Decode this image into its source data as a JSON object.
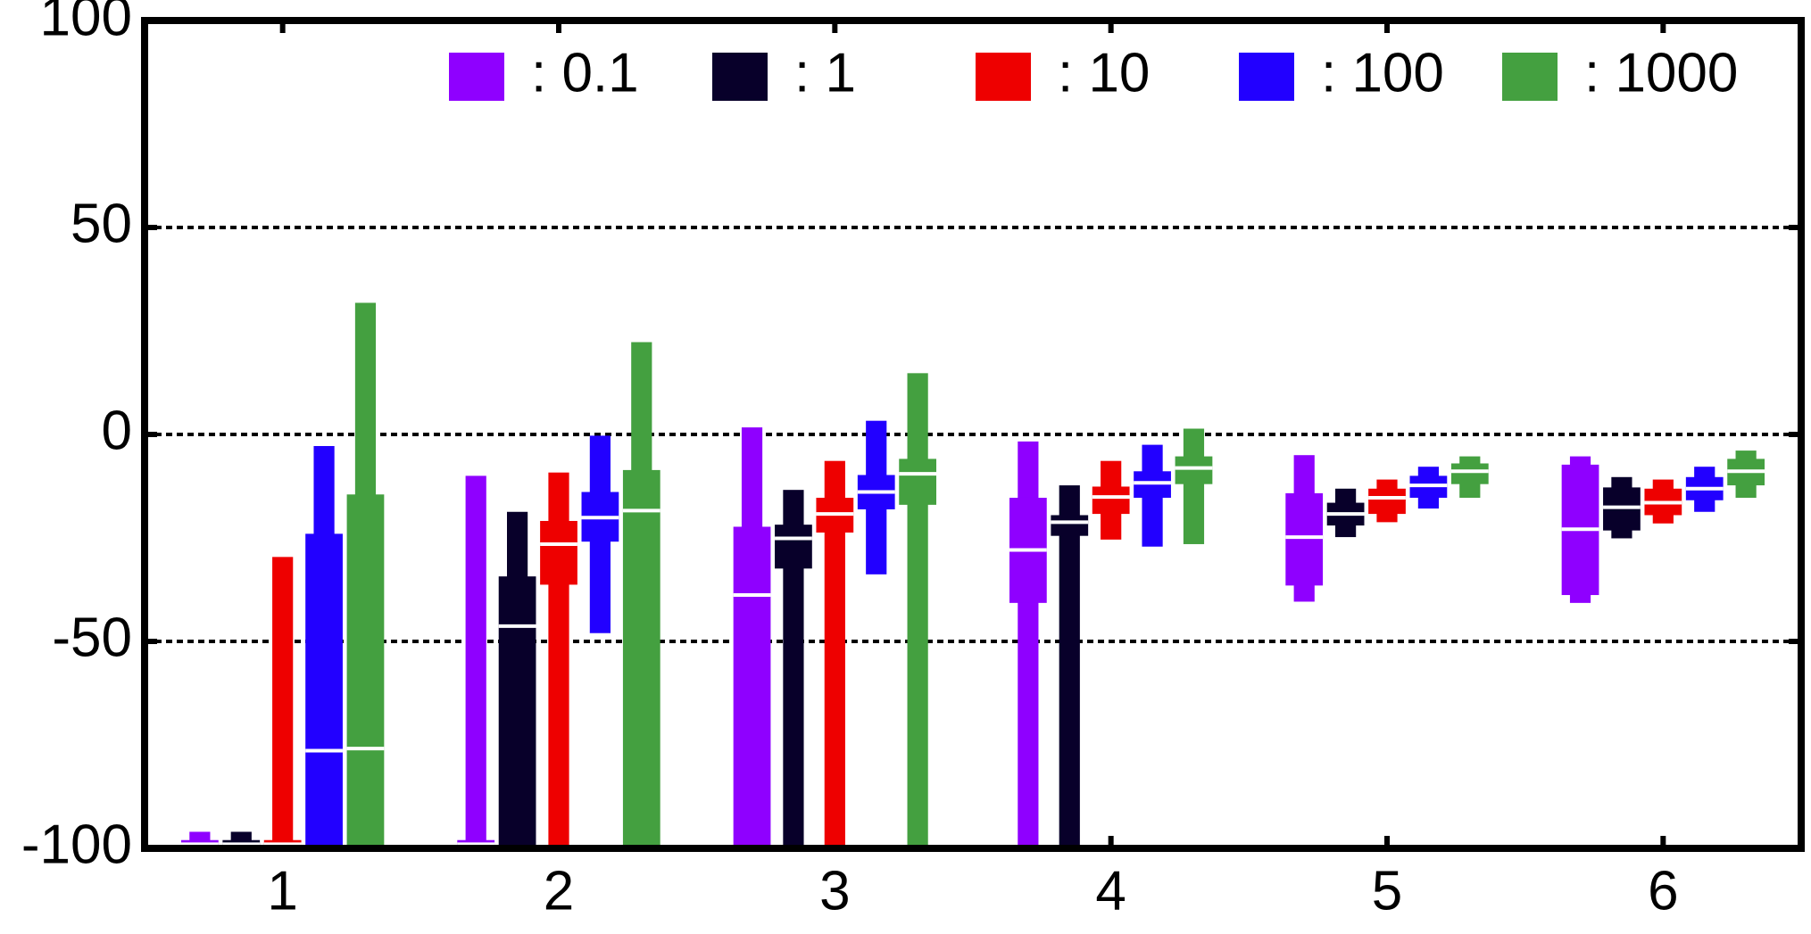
{
  "chart_data": {
    "type": "box",
    "categories": [
      "1",
      "2",
      "3",
      "4",
      "5",
      "6"
    ],
    "series": [
      {
        "name": ": 0.1",
        "color": "#8f00ff",
        "low": [
          -100,
          -100,
          -100,
          -100,
          -40.4,
          -40.7
        ],
        "q1": [
          -100,
          -100,
          -100,
          -40.7,
          -36.5,
          -38.8
        ],
        "median": [
          -99,
          -99,
          -38.8,
          -27.9,
          -24.8,
          -22.9
        ],
        "q3": [
          -98,
          -98,
          -22.3,
          -15.3,
          -14.2,
          -7.3
        ],
        "high": [
          -96,
          -10,
          1.7,
          -1.7,
          -5,
          -5.3
        ]
      },
      {
        "name": ": 1",
        "color": "#08002a",
        "low": [
          -100,
          -100,
          -100,
          -100,
          -24.8,
          -25.1
        ],
        "q1": [
          -100,
          -100,
          -32.4,
          -24.5,
          -22,
          -23.2
        ],
        "median": [
          -99,
          -46.3,
          -25.1,
          -21.2,
          -19.2,
          -17.6
        ],
        "q3": [
          -98,
          -34.3,
          -21.8,
          -19.5,
          -16.5,
          -12.8
        ],
        "high": [
          -96,
          -18.7,
          -13.4,
          -12.3,
          -13.1,
          -10.3
        ]
      },
      {
        "name": ": 10",
        "color": "#ee0000",
        "low": [
          -100,
          -100,
          -100,
          -25.4,
          -21.2,
          -21.5
        ],
        "q1": [
          -100,
          -36.3,
          -23.7,
          -19.2,
          -19.2,
          -19.5
        ],
        "median": [
          -99,
          -26.5,
          -19.2,
          -15.1,
          -15.3,
          -16.5
        ],
        "q3": [
          -98,
          -20.9,
          -15.3,
          -12.6,
          -13.1,
          -13.1
        ],
        "high": [
          -29.6,
          -9.2,
          -6.4,
          -6.4,
          -10.9,
          -10.9
        ]
      },
      {
        "name": ": 100",
        "color": "#2200ff",
        "low": [
          -100,
          -48,
          -33.8,
          -27.1,
          -17.9,
          -18.7
        ],
        "q1": [
          -100,
          -25.9,
          -18.1,
          -15.3,
          -15.3,
          -15.9
        ],
        "median": [
          -76.4,
          -20.1,
          -13.9,
          -11.7,
          -12.3,
          -13.1
        ],
        "q3": [
          -24,
          -13.9,
          -9.8,
          -8.9,
          -10,
          -10.3
        ],
        "high": [
          -2.8,
          -0.3,
          3.3,
          -2.5,
          -7.8,
          -7.8
        ]
      },
      {
        "name": ": 1000",
        "color": "#44a040",
        "low": [
          -100,
          -100,
          -100,
          -26.5,
          -15.3,
          -15.3
        ],
        "q1": [
          -100,
          -100,
          -17,
          -12,
          -12,
          -12.3
        ],
        "median": [
          -75.9,
          -18.4,
          -9.5,
          -8.1,
          -8.9,
          -8.9
        ],
        "q3": [
          -14.5,
          -8.6,
          -5.9,
          -5.3,
          -7,
          -5.9
        ],
        "high": [
          31.8,
          22.3,
          14.8,
          1.4,
          -5.3,
          -3.9
        ]
      }
    ],
    "ylim": [
      -100,
      100
    ],
    "yticks": [
      -100,
      -50,
      0,
      50,
      100
    ],
    "grid": true
  }
}
